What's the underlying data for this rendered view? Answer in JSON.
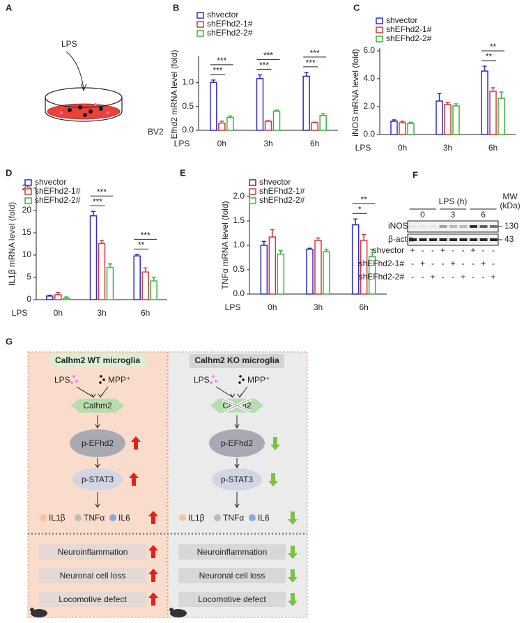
{
  "panel_labels": [
    "A",
    "B",
    "C",
    "D",
    "E",
    "F",
    "G"
  ],
  "panel_a": {
    "stimulus": "LPS",
    "cells": "BV2"
  },
  "chart_data": [
    {
      "type": "bar",
      "ylabel": "Efhd2 mRNA level (fold)",
      "xlabel": "LPS",
      "categories": [
        "0h",
        "3h",
        "6h"
      ],
      "ylim": [
        0,
        1.5
      ],
      "yticks": [
        {
          "value": 0,
          "label": "0.0"
        },
        {
          "value": 0.5,
          "label": "0.5"
        },
        {
          "value": 1,
          "label": "1.0"
        }
      ],
      "series": [
        {
          "name": "shvector",
          "color": "#2b2bd9",
          "values": [
            1.0,
            1.08,
            1.13
          ],
          "errors": [
            0.05,
            0.08,
            0.08
          ],
          "significance": [
            null,
            null,
            null
          ]
        },
        {
          "name": "shEFhd2-1#",
          "color": "#e03333",
          "values": [
            0.15,
            0.19,
            0.16
          ],
          "errors": [
            0.04,
            0.01,
            0.01
          ],
          "significance": [
            "***",
            "***",
            "***"
          ]
        },
        {
          "name": "shEFhd2-2#",
          "color": "#33b833",
          "values": [
            0.27,
            0.4,
            0.31
          ],
          "errors": [
            0.03,
            0.02,
            0.04
          ],
          "significance": [
            "***",
            "***",
            "***"
          ]
        }
      ]
    },
    {
      "type": "bar",
      "ylabel": "iNOS mRNA level (fold)",
      "xlabel": "LPS",
      "categories": [
        "0h",
        "3h",
        "6h"
      ],
      "ylim": [
        0,
        6
      ],
      "yticks": [
        {
          "value": 0,
          "label": "0.0"
        },
        {
          "value": 2,
          "label": "2.0"
        },
        {
          "value": 4,
          "label": "4.0"
        },
        {
          "value": 6,
          "label": "6.0"
        }
      ],
      "series": [
        {
          "name": "shvector",
          "color": "#2b2bd9",
          "values": [
            0.95,
            2.4,
            4.55
          ],
          "errors": [
            0.1,
            0.55,
            0.35
          ],
          "significance": [
            null,
            null,
            null
          ]
        },
        {
          "name": "shEFhd2-1#",
          "color": "#e03333",
          "values": [
            0.85,
            2.15,
            3.1
          ],
          "errors": [
            0.1,
            0.15,
            0.25
          ],
          "significance": [
            null,
            null,
            "**"
          ]
        },
        {
          "name": "shEFhd2-2#",
          "color": "#33b833",
          "values": [
            0.8,
            2.05,
            2.6
          ],
          "errors": [
            0.08,
            0.15,
            0.45
          ],
          "significance": [
            null,
            null,
            "**"
          ]
        }
      ]
    },
    {
      "type": "bar",
      "ylabel": "IL1β mRNA level (fold)",
      "xlabel": "LPS",
      "categories": [
        "0h",
        "3h",
        "6h"
      ],
      "ylim": [
        0,
        25
      ],
      "yticks": [
        0,
        5,
        10,
        15,
        20,
        25
      ],
      "series": [
        {
          "name": "shvector",
          "color": "#2b2bd9",
          "values": [
            0.8,
            18.8,
            9.8
          ],
          "errors": [
            0.2,
            1.0,
            0.3
          ],
          "significance": [
            null,
            null,
            null
          ]
        },
        {
          "name": "shEFhd2-1#",
          "color": "#e03333",
          "values": [
            1.1,
            12.6,
            6.2
          ],
          "errors": [
            0.5,
            0.6,
            0.9
          ],
          "significance": [
            null,
            "***",
            "**"
          ]
        },
        {
          "name": "shEFhd2-2#",
          "color": "#33b833",
          "values": [
            0.3,
            7.2,
            4.2
          ],
          "errors": [
            0.3,
            0.8,
            0.8
          ],
          "significance": [
            null,
            "***",
            "***"
          ]
        }
      ]
    },
    {
      "type": "bar",
      "ylabel": "TNFα mRNA level (fold)",
      "xlabel": "LPS",
      "categories": [
        "0h",
        "3h",
        "6h"
      ],
      "ylim": [
        0,
        2
      ],
      "yticks": [
        {
          "value": 0,
          "label": "0.0"
        },
        {
          "value": 0.5,
          "label": "0.5"
        },
        {
          "value": 1,
          "label": "1.0"
        },
        {
          "value": 1.5,
          "label": "1.5"
        },
        {
          "value": 2,
          "label": "2.0"
        }
      ],
      "series": [
        {
          "name": "shvector",
          "color": "#2b2bd9",
          "values": [
            1.0,
            0.92,
            1.42
          ],
          "errors": [
            0.08,
            0.02,
            0.12
          ],
          "significance": [
            null,
            null,
            null
          ]
        },
        {
          "name": "shEFhd2-1#",
          "color": "#e03333",
          "values": [
            1.17,
            1.1,
            1.1
          ],
          "errors": [
            0.15,
            0.05,
            0.12
          ],
          "significance": [
            null,
            null,
            "*"
          ]
        },
        {
          "name": "shEFhd2-2#",
          "color": "#33b833",
          "values": [
            0.82,
            0.87,
            0.77
          ],
          "errors": [
            0.07,
            0.05,
            0.15
          ],
          "significance": [
            null,
            null,
            "**"
          ]
        }
      ]
    }
  ],
  "blot": {
    "title": "LPS (h)",
    "mw_title": "MW",
    "mw_unit": "(kDa)",
    "timepoints": [
      "0",
      "3",
      "6"
    ],
    "bands": [
      {
        "name": "iNOS",
        "mw": 130
      },
      {
        "name": "β-actin",
        "mw": 43
      }
    ],
    "conditions": [
      {
        "name": "shvector",
        "lanes": [
          "+",
          "-",
          "-",
          "+",
          "-",
          "-",
          "+",
          "-",
          "-"
        ]
      },
      {
        "name": "shEFhd2-1#",
        "lanes": [
          "-",
          "+",
          "-",
          "-",
          "+",
          "-",
          "-",
          "+",
          "-"
        ]
      },
      {
        "name": "shEFhd2-2#",
        "lanes": [
          "-",
          "-",
          "+",
          "-",
          "-",
          "+",
          "-",
          "-",
          "+"
        ]
      }
    ]
  },
  "diagram": {
    "panels": [
      {
        "title": "Calhm2 WT microglia",
        "stimuli": [
          "LPS",
          "MPP⁺"
        ],
        "sensor": "Calhm2",
        "kinase": "p-EFhd2",
        "factor": "p-STAT3",
        "cytokines": [
          "IL1β",
          "TNFα",
          "IL6"
        ],
        "outcomes": [
          "Neuroinflammation",
          "Neuronal cell loss",
          "Locomotive defect"
        ],
        "trend": "up"
      },
      {
        "title": "Calhm2 KO microglia",
        "stimuli": [
          "LPS",
          "MPP⁺"
        ],
        "sensor": "Calhm2",
        "kinase": "p-EFhd2",
        "factor": "p-STAT3",
        "cytokines": [
          "IL1β",
          "TNFα",
          "IL6"
        ],
        "outcomes": [
          "Neuroinflammation",
          "Neuronal cell loss",
          "Locomotive defect"
        ],
        "trend": "down"
      }
    ]
  }
}
